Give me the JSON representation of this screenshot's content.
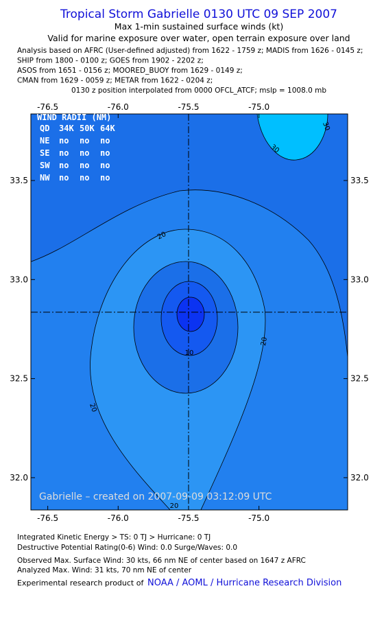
{
  "chart_data": {
    "type": "contour",
    "title": "Tropical Storm Gabrielle 0130 UTC 09 SEP 2007",
    "subtitle_lines": [
      "Max 1-min sustained surface winds (kt)",
      "Valid for marine exposure over water, open terrain exposure over land"
    ],
    "info_lines": [
      "Analysis based on  AFRC (User-defined adjusted) from 1622 - 1759 z;  MADIS from 1626 - 0145 z;",
      "SHIP from 1800 - 0100 z;  GOES from 1902 - 2202 z;",
      "ASOS from 1651 - 0156 z;  MOORED_BUOY from 1629 - 0149 z;",
      "CMAN from 1629 - 0059 z;  METAR from 1622 - 0204 z;",
      "0130 z position interpolated from 0000 OFCL_ATCF; mslp = 1008.0 mb"
    ],
    "xlim": [
      -76.62,
      -74.37
    ],
    "ylim": [
      31.837,
      33.836
    ],
    "xticks": [
      -76.5,
      {
        "value": -76.0,
        "label": "-76.0"
      },
      -75.5,
      {
        "value": -75.0,
        "label": "-75.0"
      }
    ],
    "yticks": [
      {
        "value": 32.0,
        "label": "32.0"
      },
      32.5,
      {
        "value": 33.0,
        "label": "33.0"
      },
      33.5
    ],
    "center": [
      -75.5,
      32.835
    ],
    "contour_labels": [
      "30",
      "30",
      "20",
      "20",
      "20",
      "10",
      "20"
    ],
    "wind_radii": {
      "title": "WIND RADII (NM)",
      "header": [
        "QD",
        "34K",
        "50K",
        "64K"
      ],
      "rows": [
        [
          "NE",
          "no",
          "no",
          "no"
        ],
        [
          "SE",
          "no",
          "no",
          "no"
        ],
        [
          "SW",
          "no",
          "no",
          "no"
        ],
        [
          "NW",
          "no",
          "no",
          "no"
        ]
      ]
    },
    "credit": "Gabrielle – created on 2007-09-09 03:12:09 UTC",
    "footer_lines": [
      "Integrated Kinetic Energy > TS: 0 TJ   > Hurricane: 0 TJ",
      "Destructive Potential Rating(0-6)   Wind: 0.0 Surge/Waves: 0.0",
      "Observed Max. Surface Wind: 30 kts, 66 nm NE of center based on 1647 z AFRC",
      "Analyzed Max. Wind: 31 kts, 70 nm NE of center"
    ],
    "footer_product": "Experimental research product of",
    "footer_link": "NOAA / AOML / Hurricane Research Division"
  }
}
